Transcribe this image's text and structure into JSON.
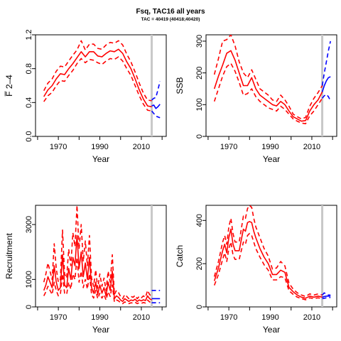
{
  "figure": {
    "title": "Fsq, TAC16 all years",
    "subtitle": "TAC = 40419 (40418;40420)"
  },
  "colors": {
    "history": "#ff0000",
    "forecast": "#0000ff",
    "marker": "#c8c8c8",
    "axis": "#000000"
  },
  "chart_data": [
    {
      "type": "line",
      "panel": "fbar",
      "ylabel": "F̅ 2–4",
      "xlabel": "Year",
      "xlim": [
        1959,
        2022
      ],
      "ylim": [
        0,
        1.2
      ],
      "xticks": [
        1970,
        1990,
        2010
      ],
      "yticks": [
        0.0,
        0.4,
        0.8,
        1.2
      ],
      "ytick_labels": [
        "0.0",
        "0.4",
        "0.8",
        "1.2"
      ],
      "grid": false,
      "marker_year": 2015,
      "x": [
        1963,
        1965,
        1967,
        1969,
        1971,
        1973,
        1975,
        1977,
        1979,
        1981,
        1983,
        1985,
        1987,
        1989,
        1991,
        1993,
        1995,
        1997,
        1999,
        2001,
        2003,
        2005,
        2007,
        2009,
        2011,
        2013,
        2015
      ],
      "median": [
        0.47,
        0.55,
        0.6,
        0.68,
        0.74,
        0.73,
        0.8,
        0.86,
        0.93,
        1.0,
        0.94,
        1.0,
        1.0,
        0.95,
        0.94,
        0.98,
        1.01,
        1.0,
        1.03,
        0.98,
        0.88,
        0.8,
        0.68,
        0.55,
        0.44,
        0.36,
        0.35
      ],
      "lower": [
        0.41,
        0.48,
        0.52,
        0.6,
        0.66,
        0.65,
        0.72,
        0.78,
        0.86,
        0.92,
        0.87,
        0.91,
        0.9,
        0.87,
        0.85,
        0.89,
        0.92,
        0.91,
        0.94,
        0.89,
        0.8,
        0.72,
        0.6,
        0.48,
        0.38,
        0.31,
        0.3
      ],
      "upper": [
        0.54,
        0.63,
        0.68,
        0.77,
        0.83,
        0.82,
        0.89,
        0.96,
        1.02,
        1.13,
        1.02,
        1.09,
        1.09,
        1.04,
        1.03,
        1.08,
        1.11,
        1.1,
        1.13,
        1.08,
        0.97,
        0.88,
        0.76,
        0.63,
        0.51,
        0.43,
        0.42
      ],
      "forecast_x": [
        2015,
        2016,
        2017,
        2018,
        2019
      ],
      "forecast_median": [
        0.36,
        0.37,
        0.33,
        0.35,
        0.38
      ],
      "forecast_lower": [
        0.3,
        0.27,
        0.24,
        0.23,
        0.22
      ],
      "forecast_upper": [
        0.43,
        0.45,
        0.46,
        0.55,
        0.65
      ]
    },
    {
      "type": "line",
      "panel": "ssb",
      "ylabel": "SSB",
      "xlabel": "Year",
      "xlim": [
        1959,
        2022
      ],
      "ylim": [
        0,
        320
      ],
      "xticks": [
        1970,
        1990,
        2010
      ],
      "yticks": [
        0,
        100,
        200,
        300
      ],
      "ytick_labels": [
        "0",
        "100",
        "200",
        "300"
      ],
      "grid": false,
      "marker_year": 2015,
      "x": [
        1963,
        1965,
        1967,
        1969,
        1971,
        1973,
        1975,
        1977,
        1979,
        1981,
        1983,
        1985,
        1987,
        1989,
        1991,
        1993,
        1995,
        1997,
        1999,
        2001,
        2003,
        2005,
        2007,
        2009,
        2011,
        2013,
        2015
      ],
      "median": [
        150,
        190,
        225,
        262,
        270,
        240,
        200,
        160,
        160,
        185,
        150,
        130,
        120,
        110,
        100,
        96,
        110,
        100,
        80,
        62,
        55,
        48,
        50,
        80,
        100,
        115,
        140
      ],
      "lower": [
        110,
        150,
        190,
        220,
        230,
        205,
        170,
        130,
        135,
        150,
        125,
        110,
        100,
        90,
        85,
        80,
        95,
        85,
        70,
        55,
        48,
        42,
        40,
        65,
        80,
        100,
        120
      ],
      "upper": [
        195,
        245,
        300,
        305,
        320,
        285,
        235,
        200,
        185,
        210,
        180,
        150,
        140,
        130,
        115,
        110,
        130,
        115,
        95,
        70,
        62,
        55,
        60,
        95,
        120,
        138,
        160
      ],
      "forecast_x": [
        2015,
        2016,
        2017,
        2018,
        2019
      ],
      "forecast_median": [
        140,
        160,
        175,
        185,
        188
      ],
      "forecast_lower": [
        120,
        128,
        132,
        125,
        112
      ],
      "forecast_upper": [
        160,
        200,
        235,
        270,
        300
      ]
    },
    {
      "type": "line",
      "panel": "recruitment",
      "ylabel": "Recruitment",
      "xlabel": "Year",
      "xlim": [
        1959,
        2022
      ],
      "ylim": [
        0,
        3700
      ],
      "xticks": [
        1970,
        1990,
        2010
      ],
      "yticks": [
        0,
        1000,
        3000
      ],
      "ytick_labels": [
        "0",
        "1000",
        "3000"
      ],
      "grid": false,
      "marker_year": 2015,
      "x": [
        1963,
        1964,
        1965,
        1966,
        1967,
        1968,
        1969,
        1970,
        1971,
        1972,
        1973,
        1974,
        1975,
        1976,
        1977,
        1978,
        1979,
        1980,
        1981,
        1982,
        1983,
        1984,
        1985,
        1986,
        1987,
        1988,
        1989,
        1990,
        1991,
        1992,
        1993,
        1994,
        1995,
        1996,
        1997,
        1998,
        1999,
        2000,
        2001,
        2002,
        2003,
        2004,
        2005,
        2006,
        2007,
        2008,
        2009,
        2010,
        2011,
        2012,
        2013,
        2014,
        2015
      ],
      "median": [
        600,
        800,
        1100,
        900,
        700,
        1500,
        900,
        600,
        700,
        1900,
        800,
        700,
        1400,
        1000,
        1800,
        1500,
        2600,
        1400,
        2000,
        1100,
        1600,
        1000,
        1800,
        700,
        500,
        900,
        450,
        800,
        500,
        700,
        400,
        900,
        600,
        1300,
        300,
        400,
        350,
        250,
        200,
        300,
        250,
        200,
        250,
        230,
        280,
        200,
        250,
        220,
        260,
        230,
        400,
        300,
        250
      ],
      "lower": [
        400,
        550,
        750,
        600,
        450,
        900,
        600,
        400,
        450,
        1200,
        500,
        450,
        900,
        650,
        1200,
        1000,
        1800,
        900,
        1300,
        700,
        1000,
        650,
        1200,
        450,
        320,
        600,
        300,
        500,
        320,
        450,
        250,
        550,
        380,
        800,
        180,
        250,
        220,
        150,
        120,
        180,
        150,
        120,
        150,
        140,
        170,
        120,
        150,
        130,
        160,
        140,
        250,
        180,
        150
      ],
      "upper": [
        900,
        1200,
        1600,
        1300,
        1000,
        2300,
        1400,
        900,
        1000,
        2800,
        1200,
        1050,
        2100,
        1500,
        2700,
        2200,
        3700,
        2100,
        3000,
        1650,
        2400,
        1500,
        2600,
        1050,
        750,
        1350,
        680,
        1200,
        750,
        1050,
        600,
        1300,
        900,
        1900,
        450,
        600,
        520,
        380,
        300,
        450,
        380,
        300,
        380,
        350,
        420,
        300,
        380,
        330,
        400,
        350,
        600,
        450,
        380
      ],
      "forecast_x": [
        2015,
        2016,
        2017,
        2018,
        2019
      ],
      "forecast_median": [
        300,
        300,
        300,
        300,
        300
      ],
      "forecast_lower": [
        150,
        150,
        150,
        150,
        150
      ],
      "forecast_upper": [
        600,
        600,
        600,
        600,
        600
      ]
    },
    {
      "type": "line",
      "panel": "catch",
      "ylabel": "Catch",
      "xlabel": "Year",
      "xlim": [
        1959,
        2022
      ],
      "ylim": [
        0,
        470
      ],
      "xticks": [
        1970,
        1990,
        2010
      ],
      "yticks": [
        0,
        200,
        400
      ],
      "ytick_labels": [
        "0",
        "200",
        "400"
      ],
      "grid": false,
      "marker_year": 2015,
      "x": [
        1963,
        1965,
        1967,
        1968,
        1969,
        1970,
        1971,
        1972,
        1973,
        1975,
        1977,
        1978,
        1979,
        1980,
        1981,
        1982,
        1983,
        1985,
        1987,
        1989,
        1991,
        1993,
        1995,
        1997,
        1999,
        2001,
        2003,
        2005,
        2007,
        2009,
        2011,
        2013,
        2015
      ],
      "median": [
        120,
        180,
        260,
        290,
        250,
        320,
        360,
        290,
        260,
        260,
        360,
        350,
        390,
        395,
        390,
        350,
        320,
        270,
        230,
        200,
        150,
        150,
        170,
        160,
        90,
        70,
        55,
        45,
        40,
        50,
        45,
        50,
        45
      ],
      "lower": [
        100,
        150,
        220,
        250,
        210,
        270,
        300,
        240,
        220,
        220,
        300,
        290,
        330,
        340,
        330,
        300,
        270,
        230,
        195,
        170,
        125,
        125,
        140,
        135,
        75,
        58,
        45,
        38,
        33,
        42,
        38,
        42,
        38
      ],
      "upper": [
        140,
        210,
        300,
        330,
        290,
        370,
        410,
        340,
        300,
        300,
        420,
        410,
        455,
        470,
        460,
        410,
        370,
        320,
        270,
        235,
        175,
        180,
        210,
        190,
        110,
        82,
        65,
        55,
        48,
        60,
        55,
        60,
        55
      ],
      "forecast_x": [
        2015,
        2016,
        2017,
        2018,
        2019
      ],
      "forecast_median": [
        45,
        48,
        50,
        50,
        50
      ],
      "forecast_lower": [
        38,
        40,
        42,
        42,
        44
      ],
      "forecast_upper": [
        55,
        65,
        58,
        55,
        55
      ]
    }
  ]
}
